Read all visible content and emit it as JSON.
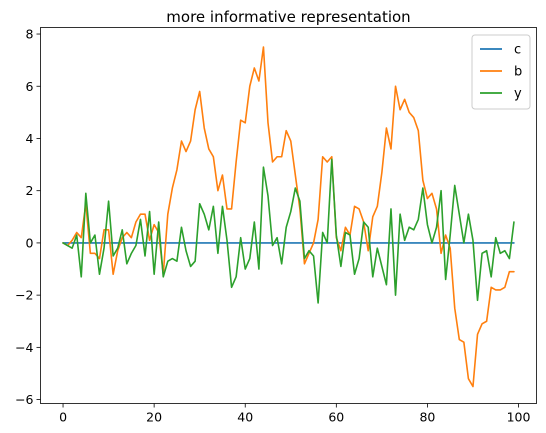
{
  "chart_data": {
    "type": "line",
    "title": "more informative representation",
    "xlabel": "",
    "ylabel": "",
    "xlim": [
      -4.95,
      103.95
    ],
    "ylim": [
      -6.15,
      8.25
    ],
    "xticks": [
      0,
      20,
      40,
      60,
      80,
      100
    ],
    "yticks": [
      -6,
      -4,
      -2,
      0,
      2,
      4,
      6,
      8
    ],
    "grid": false,
    "legend_position": "top-right",
    "x": [
      0,
      1,
      2,
      3,
      4,
      5,
      6,
      7,
      8,
      9,
      10,
      11,
      12,
      13,
      14,
      15,
      16,
      17,
      18,
      19,
      20,
      21,
      22,
      23,
      24,
      25,
      26,
      27,
      28,
      29,
      30,
      31,
      32,
      33,
      34,
      35,
      36,
      37,
      38,
      39,
      40,
      41,
      42,
      43,
      44,
      45,
      46,
      47,
      48,
      49,
      50,
      51,
      52,
      53,
      54,
      55,
      56,
      57,
      58,
      59,
      60,
      61,
      62,
      63,
      64,
      65,
      66,
      67,
      68,
      69,
      70,
      71,
      72,
      73,
      74,
      75,
      76,
      77,
      78,
      79,
      80,
      81,
      82,
      83,
      84,
      85,
      86,
      87,
      88,
      89,
      90,
      91,
      92,
      93,
      94,
      95,
      96,
      97,
      98,
      99
    ],
    "series": [
      {
        "name": "c",
        "color": "#1f77b4",
        "values": [
          0,
          0,
          0,
          0,
          0,
          0,
          0,
          0,
          0,
          0,
          0,
          0,
          0,
          0,
          0,
          0,
          0,
          0,
          0,
          0,
          0,
          0,
          0,
          0,
          0,
          0,
          0,
          0,
          0,
          0,
          0,
          0,
          0,
          0,
          0,
          0,
          0,
          0,
          0,
          0,
          0,
          0,
          0,
          0,
          0,
          0,
          0,
          0,
          0,
          0,
          0,
          0,
          0,
          0,
          0,
          0,
          0,
          0,
          0,
          0,
          0,
          0,
          0,
          0,
          0,
          0,
          0,
          0,
          0,
          0,
          0,
          0,
          0,
          0,
          0,
          0,
          0,
          0,
          0,
          0,
          0,
          0,
          0,
          0,
          0,
          0,
          0,
          0,
          0,
          0,
          0,
          0,
          0,
          0,
          0,
          0,
          0,
          0,
          0,
          0
        ]
      },
      {
        "name": "b",
        "color": "#ff7f0e",
        "values": [
          0,
          -0.1,
          0.1,
          0.4,
          0.2,
          1.5,
          -0.4,
          -0.4,
          -0.6,
          0.5,
          0.5,
          -1.2,
          -0.3,
          0.2,
          0.4,
          0.2,
          0.8,
          1.1,
          1.1,
          0.1,
          0.7,
          0.4,
          -1.2,
          1.1,
          2.1,
          2.8,
          3.9,
          3.5,
          3.9,
          5.1,
          5.8,
          4.4,
          3.6,
          3.3,
          2,
          2.6,
          1.3,
          1.3,
          3.1,
          4.7,
          4.6,
          6,
          6.7,
          6.2,
          7.5,
          4.6,
          3.1,
          3.3,
          3.3,
          4.3,
          3.9,
          2.6,
          1.3,
          -0.8,
          -0.4,
          0,
          0.9,
          3.3,
          3.1,
          3.3,
          0.2,
          -0.3,
          0.6,
          0.3,
          1.4,
          1.3,
          0.8,
          -0.3,
          1,
          1.4,
          2.7,
          4.4,
          3.6,
          6,
          5.1,
          5.5,
          5,
          4.8,
          4.3,
          2.4,
          1.7,
          1.9,
          1.3,
          -0.4,
          0.3,
          -0.2,
          -2.5,
          -3.7,
          -3.8,
          -5.2,
          -5.5,
          -3.5,
          -3.1,
          -3,
          -1.7,
          -1.8,
          -1.8,
          -1.7,
          -1.1,
          -1.1
        ]
      },
      {
        "name": "y",
        "color": "#2ca02c",
        "values": [
          0,
          -0.1,
          -0.2,
          0.3,
          -1.3,
          1.9,
          0,
          0.3,
          -1.2,
          -0.2,
          1.6,
          -0.5,
          -0.2,
          0.5,
          -0.8,
          -0.4,
          -0.1,
          0.9,
          -0.5,
          1.2,
          -1.2,
          0.8,
          -1.3,
          -0.7,
          -0.6,
          -0.7,
          0.6,
          -0.3,
          -0.9,
          -0.7,
          1.5,
          1.1,
          0.5,
          1.4,
          -0.4,
          1.4,
          0.1,
          -1.7,
          -1.3,
          0.2,
          -1,
          -0.6,
          0.8,
          -1,
          2.9,
          1.8,
          -0.1,
          0.2,
          -0.8,
          0.6,
          1.2,
          2.1,
          1.6,
          -0.6,
          -0.3,
          -0.5,
          -2.3,
          0.4,
          0,
          3.2,
          0.3,
          -0.9,
          0.4,
          0.3,
          -1.2,
          -0.6,
          0.8,
          0.6,
          -1.3,
          -0.2,
          -0.9,
          -1.6,
          1.3,
          -2,
          1.1,
          0.1,
          0.6,
          0.5,
          0.9,
          2.1,
          0.7,
          0,
          0.6,
          2,
          -1.4,
          0.3,
          2.2,
          1.1,
          0,
          1.1,
          0.1,
          -2.2,
          -0.4,
          -0.3,
          -1.3,
          0.2,
          -0.4,
          -0.3,
          -0.6,
          0.8
        ]
      }
    ]
  }
}
